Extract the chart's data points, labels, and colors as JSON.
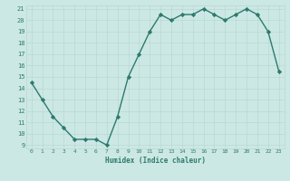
{
  "x": [
    0,
    1,
    2,
    3,
    4,
    5,
    6,
    7,
    8,
    9,
    10,
    11,
    12,
    13,
    14,
    15,
    16,
    17,
    18,
    19,
    20,
    21,
    22,
    23
  ],
  "y": [
    14.5,
    13.0,
    11.5,
    10.5,
    9.5,
    9.5,
    9.5,
    9.0,
    11.5,
    15.0,
    17.0,
    19.0,
    20.5,
    20.0,
    20.5,
    20.5,
    21.0,
    20.5,
    20.0,
    20.5,
    21.0,
    20.5,
    19.0,
    15.5
  ],
  "xlim": [
    -0.5,
    23.5
  ],
  "ylim": [
    8.7,
    21.3
  ],
  "yticks": [
    9,
    10,
    11,
    12,
    13,
    14,
    15,
    16,
    17,
    18,
    19,
    20,
    21
  ],
  "xticks": [
    0,
    1,
    2,
    3,
    4,
    5,
    6,
    7,
    8,
    9,
    10,
    11,
    12,
    13,
    14,
    15,
    16,
    17,
    18,
    19,
    20,
    21,
    22,
    23
  ],
  "xlabel": "Humidex (Indice chaleur)",
  "line_color": "#2d7a6e",
  "marker": "D",
  "marker_size": 2.2,
  "bg_color": "#cce8e4",
  "grid_color": "#b8d8d4",
  "font_color": "#2d7a6e"
}
